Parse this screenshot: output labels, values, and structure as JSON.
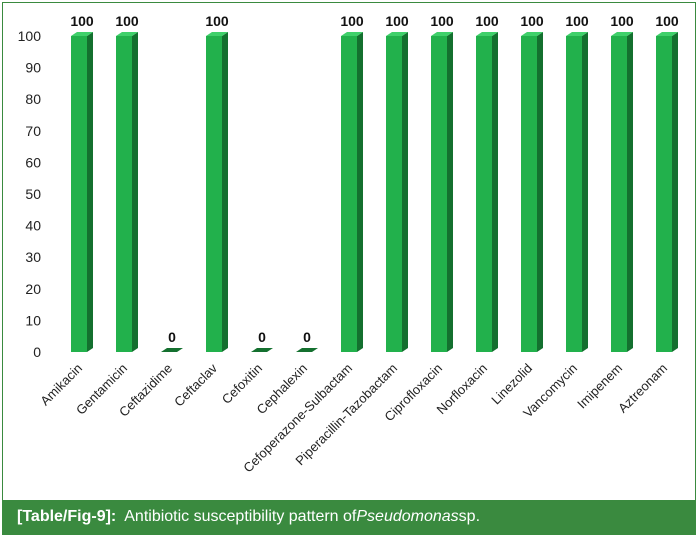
{
  "chart_data": {
    "type": "bar",
    "categories": [
      "Amikacin",
      "Gentamicin",
      "Ceftazidime",
      "Ceftaclav",
      "Cefoxitin",
      "Cephalexin",
      "Cefoperazone-Sulbactam",
      "Piperacillin-Tazobactam",
      "Ciprofloxacin",
      "Norfloxacin",
      "Linezolid",
      "Vancomycin",
      "Imipenem",
      "Aztreonam"
    ],
    "values": [
      100,
      100,
      0,
      100,
      0,
      0,
      100,
      100,
      100,
      100,
      100,
      100,
      100,
      100
    ],
    "data_labels": [
      "100",
      "100",
      "0",
      "100",
      "0",
      "0",
      "100",
      "100",
      "100",
      "100",
      "100",
      "100",
      "100",
      "100"
    ],
    "yticks": [
      "0",
      "10",
      "20",
      "30",
      "40",
      "50",
      "60",
      "70",
      "80",
      "90",
      "100"
    ],
    "ylim": [
      0,
      100
    ],
    "grid": false,
    "legend": "none",
    "colors": {
      "bar_front": "#22b14c",
      "bar_side": "#14702f",
      "bar_top": "#3fd06a"
    }
  },
  "caption": {
    "label": "[Table/Fig-9]:",
    "text_before": "Antibiotic susceptibility pattern of ",
    "text_italic": "Pseudomonas",
    "text_after": " sp."
  }
}
